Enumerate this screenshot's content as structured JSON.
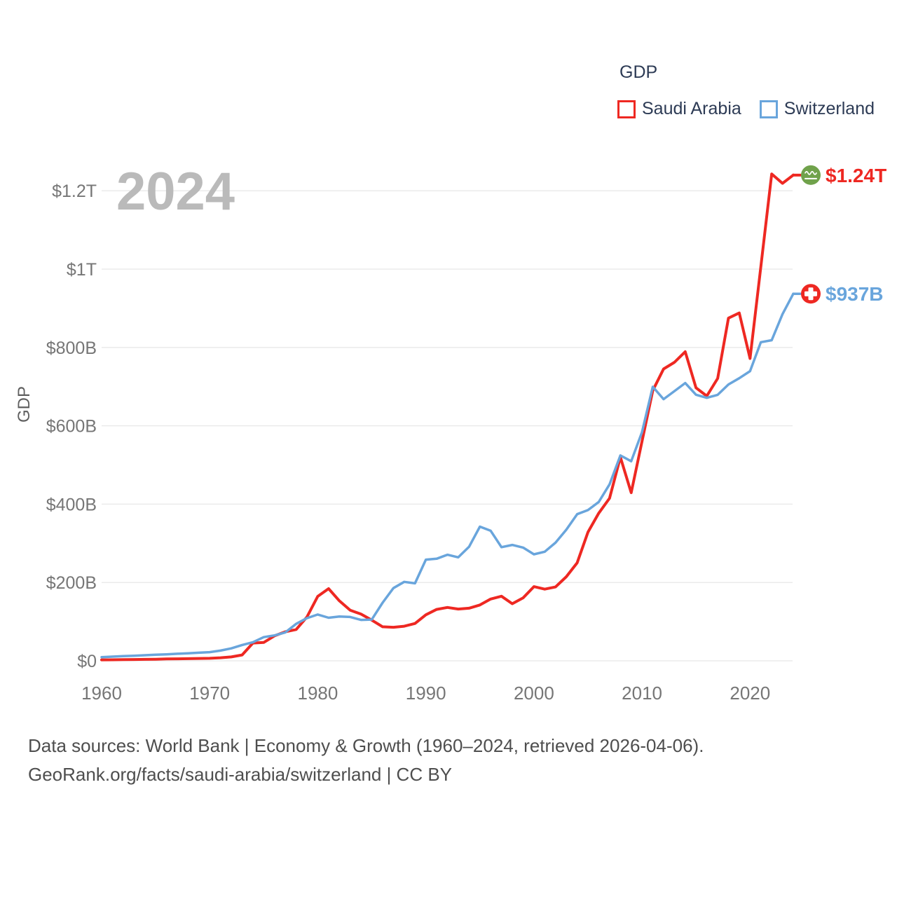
{
  "legend": {
    "title": "GDP",
    "series": [
      {
        "label": "Saudi Arabia",
        "color": "#ee2822"
      },
      {
        "label": "Switzerland",
        "color": "#69a5dc"
      }
    ]
  },
  "watermark": "2024",
  "caption": {
    "line1": "Data sources: World Bank | Economy & Growth (1960–2024, retrieved 2026-04-06).",
    "line2": "GeoRank.org/facts/saudi-arabia/switzerland | CC BY"
  },
  "chart_data": {
    "type": "line",
    "title": "GDP",
    "ylabel": "GDP",
    "xlabel": "",
    "grid": true,
    "legend_position": "top-right",
    "ylim": [
      0,
      1300
    ],
    "xlim": [
      1960,
      2024
    ],
    "x": [
      1960,
      1961,
      1962,
      1963,
      1964,
      1965,
      1966,
      1967,
      1968,
      1969,
      1970,
      1971,
      1972,
      1973,
      1974,
      1975,
      1976,
      1977,
      1978,
      1979,
      1980,
      1981,
      1982,
      1983,
      1984,
      1985,
      1986,
      1987,
      1988,
      1989,
      1990,
      1991,
      1992,
      1993,
      1994,
      1995,
      1996,
      1997,
      1998,
      1999,
      2000,
      2001,
      2002,
      2003,
      2004,
      2005,
      2006,
      2007,
      2008,
      2009,
      2010,
      2011,
      2012,
      2013,
      2014,
      2015,
      2016,
      2017,
      2018,
      2019,
      2020,
      2021,
      2022,
      2023,
      2024
    ],
    "xticks": [
      1960,
      1970,
      1980,
      1990,
      2000,
      2010,
      2020
    ],
    "yticks": [
      {
        "label": "$0",
        "value": 0
      },
      {
        "label": "$200B",
        "value": 200
      },
      {
        "label": "$400B",
        "value": 400
      },
      {
        "label": "$600B",
        "value": 600
      },
      {
        "label": "$800B",
        "value": 800
      },
      {
        "label": "$1T",
        "value": 1000
      },
      {
        "label": "$1.2T",
        "value": 1200
      }
    ],
    "series": [
      {
        "name": "Saudi Arabia",
        "color": "#ee2822",
        "flag": "saudi-arabia",
        "flag_bg": "#70a24b",
        "end_label": "$1.24T",
        "values": [
          2.5,
          2.7,
          3.0,
          3.4,
          3.8,
          4.2,
          4.8,
          5.2,
          5.6,
          6.0,
          6.5,
          7.9,
          10.0,
          15.0,
          45.4,
          46.8,
          63.8,
          74.2,
          79.9,
          111.9,
          164.5,
          184.3,
          153.2,
          129.2,
          119.3,
          103.9,
          86.9,
          85.7,
          88.3,
          95.3,
          117.6,
          131.3,
          136.3,
          132.2,
          134.3,
          142.5,
          157.7,
          165.0,
          145.8,
          160.9,
          189.5,
          183.0,
          188.6,
          214.6,
          250.3,
          328.5,
          376.9,
          415.0,
          519.8,
          429.1,
          560,
          690,
          745,
          762,
          789,
          697,
          676,
          721,
          875,
          888,
          772,
          1006,
          1243,
          1219,
          1240
        ]
      },
      {
        "name": "Switzerland",
        "color": "#69a5dc",
        "flag": "switzerland",
        "flag_bg": "#ee2822",
        "end_label": "$937B",
        "values": [
          9.5,
          10.7,
          11.9,
          13.0,
          14.4,
          15.5,
          16.7,
          18.0,
          19.4,
          20.7,
          22.1,
          26.1,
          31.8,
          40.4,
          47.5,
          60.4,
          65.0,
          72.6,
          94.4,
          108.9,
          118.2,
          110.1,
          113.0,
          111.9,
          104.4,
          105.3,
          148.5,
          185.6,
          201.6,
          197.9,
          258.3,
          260.6,
          270.9,
          264.3,
          291.0,
          342.5,
          332.0,
          290.1,
          295.9,
          289.0,
          271.9,
          278.6,
          301.6,
          334.7,
          374.4,
          384.8,
          405.5,
          450.5,
          524.3,
          509.5,
          583.8,
          699.6,
          668.0,
          688.5,
          709.2,
          679.3,
          671.3,
          679.0,
          705.5,
          721.4,
          739.5,
          813.4,
          818.4,
          884.9,
          937.0
        ]
      }
    ]
  }
}
